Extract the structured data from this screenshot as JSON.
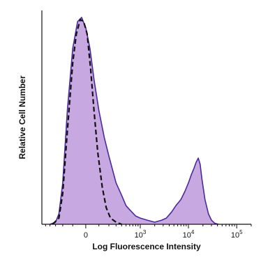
{
  "chart_data": {
    "type": "area",
    "title": "",
    "xlabel": "Log Fluorescence Intensity",
    "ylabel": "Relative Cell Number",
    "x_scale": "biexponential",
    "xlim": [
      -600,
      200000
    ],
    "ylim": [
      0,
      1.0
    ],
    "x_ticks": [
      {
        "value": 0,
        "base": "0",
        "exp": ""
      },
      {
        "value": 1000,
        "base": "10",
        "exp": "3"
      },
      {
        "value": 10000,
        "base": "10",
        "exp": "4"
      },
      {
        "value": 100000,
        "base": "10",
        "exp": "5"
      }
    ],
    "grid": false,
    "legend": "none",
    "colors": {
      "fill": "#c7a8e0",
      "stroke": "#4a2a9c",
      "control": "#111111",
      "axis": "#111111"
    },
    "series": [
      {
        "style": "filled-solid",
        "x": [
          -400,
          -300,
          -250,
          -200,
          -150,
          -100,
          -60,
          -30,
          0,
          30,
          60,
          100,
          150,
          200,
          300,
          400,
          500,
          600,
          800,
          1000,
          1400,
          2000,
          2800,
          3500,
          4500,
          5500,
          7000,
          8500,
          10000,
          11500,
          13000,
          14500,
          16000,
          17500,
          19000,
          22000,
          26000,
          30000,
          35000,
          42000
        ],
        "y": [
          0.0,
          0.01,
          0.05,
          0.2,
          0.55,
          0.85,
          0.98,
          1.0,
          0.95,
          0.85,
          0.7,
          0.55,
          0.42,
          0.33,
          0.2,
          0.14,
          0.09,
          0.07,
          0.04,
          0.03,
          0.02,
          0.01,
          0.02,
          0.03,
          0.06,
          0.09,
          0.12,
          0.16,
          0.2,
          0.24,
          0.27,
          0.3,
          0.32,
          0.29,
          0.22,
          0.12,
          0.05,
          0.02,
          0.005,
          0.0
        ]
      },
      {
        "style": "dashed",
        "x": [
          -350,
          -250,
          -200,
          -150,
          -100,
          -70,
          -40,
          -15,
          10,
          35,
          60,
          90,
          130,
          170,
          220,
          300,
          400
        ],
        "y": [
          0.0,
          0.03,
          0.15,
          0.45,
          0.78,
          0.92,
          0.99,
          0.98,
          0.92,
          0.75,
          0.55,
          0.35,
          0.18,
          0.08,
          0.03,
          0.01,
          0.0
        ]
      }
    ]
  }
}
